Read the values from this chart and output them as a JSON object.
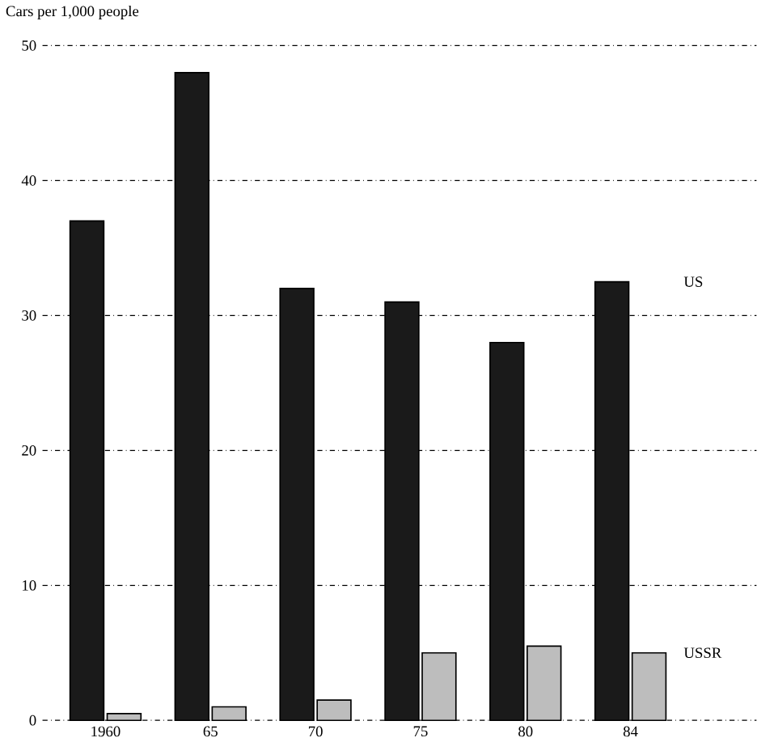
{
  "chart_data": {
    "type": "bar",
    "ylabel": "Cars per 1,000 people",
    "categories": [
      "1960",
      "65",
      "70",
      "75",
      "80",
      "84"
    ],
    "series": [
      {
        "name": "US",
        "color": "#1a1a1a",
        "values": [
          37,
          48,
          32,
          31,
          28,
          32.5
        ]
      },
      {
        "name": "USSR",
        "color": "#bdbdbd",
        "values": [
          0.5,
          1,
          1.5,
          5,
          5.5,
          5
        ]
      }
    ],
    "ylim": [
      0,
      50
    ],
    "yticks": [
      0,
      10,
      20,
      30,
      40,
      50
    ],
    "grid": "y",
    "legend": false
  }
}
